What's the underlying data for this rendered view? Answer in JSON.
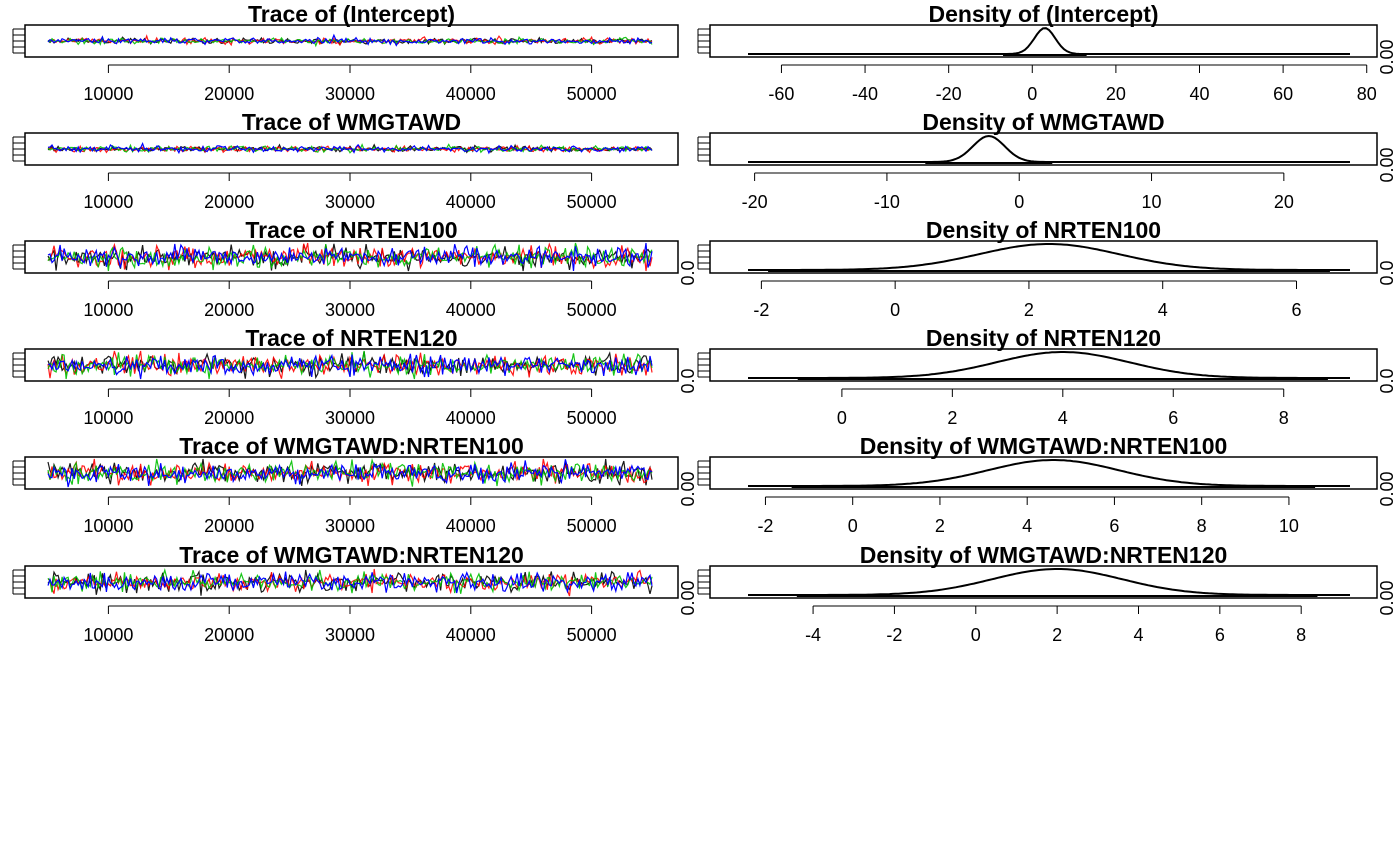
{
  "chart_data": [
    {
      "type": "line",
      "kind": "trace",
      "title": "Trace of (Intercept)",
      "x_ticks": [
        10000,
        20000,
        30000,
        40000,
        50000
      ],
      "xlim": [
        5000,
        55000
      ],
      "y_tick_label": "",
      "colors": [
        "#000000",
        "#ff0000",
        "#00c000",
        "#0000ff"
      ],
      "noise": 0.2
    },
    {
      "type": "line",
      "kind": "density",
      "title": "Density of (Intercept)",
      "x_ticks": [
        -60,
        -40,
        -20,
        0,
        20,
        40,
        60,
        80
      ],
      "xlim": [
        -68,
        76
      ],
      "y_tick_label": "0.00",
      "density": {
        "mean": 3,
        "sd": 2.5
      }
    },
    {
      "type": "line",
      "kind": "trace",
      "title": "Trace of WMGTAWD",
      "x_ticks": [
        10000,
        20000,
        30000,
        40000,
        50000
      ],
      "xlim": [
        5000,
        55000
      ],
      "y_tick_label": "",
      "colors": [
        "#000000",
        "#ff0000",
        "#00c000",
        "#0000ff"
      ],
      "noise": 0.2
    },
    {
      "type": "line",
      "kind": "density",
      "title": "Density of WMGTAWD",
      "x_ticks": [
        -20,
        -10,
        0,
        10,
        20
      ],
      "xlim": [
        -20.5,
        25
      ],
      "y_tick_label": "0.00",
      "density": {
        "mean": -2.3,
        "sd": 1.2
      }
    },
    {
      "type": "line",
      "kind": "trace",
      "title": "Trace of NRTEN100",
      "x_ticks": [
        10000,
        20000,
        30000,
        40000,
        50000
      ],
      "xlim": [
        5000,
        55000
      ],
      "y_tick_label": "0.0",
      "colors": [
        "#000000",
        "#ff0000",
        "#00c000",
        "#0000ff"
      ],
      "noise": 0.7
    },
    {
      "type": "line",
      "kind": "density",
      "title": "Density of NRTEN100",
      "x_ticks": [
        -2,
        0,
        2,
        4,
        6
      ],
      "xlim": [
        -2.2,
        6.8
      ],
      "y_tick_label": "0.0",
      "density": {
        "mean": 2.3,
        "sd": 1.05
      }
    },
    {
      "type": "line",
      "kind": "trace",
      "title": "Trace of NRTEN120",
      "x_ticks": [
        10000,
        20000,
        30000,
        40000,
        50000
      ],
      "xlim": [
        5000,
        55000
      ],
      "y_tick_label": "0.0",
      "colors": [
        "#000000",
        "#ff0000",
        "#00c000",
        "#0000ff"
      ],
      "noise": 0.7
    },
    {
      "type": "line",
      "kind": "density",
      "title": "Density of NRTEN120",
      "x_ticks": [
        0,
        2,
        4,
        6,
        8
      ],
      "xlim": [
        -1.7,
        9.2
      ],
      "y_tick_label": "0.0",
      "density": {
        "mean": 4.0,
        "sd": 1.2
      }
    },
    {
      "type": "line",
      "kind": "trace",
      "title": "Trace of WMGTAWD:NRTEN100",
      "x_ticks": [
        10000,
        20000,
        30000,
        40000,
        50000
      ],
      "xlim": [
        5000,
        55000
      ],
      "y_tick_label": "0.00",
      "colors": [
        "#000000",
        "#ff0000",
        "#00c000",
        "#0000ff"
      ],
      "noise": 0.7
    },
    {
      "type": "line",
      "kind": "density",
      "title": "Density of WMGTAWD:NRTEN100",
      "x_ticks": [
        -2,
        0,
        2,
        4,
        6,
        8,
        10
      ],
      "xlim": [
        -2.4,
        11.4
      ],
      "y_tick_label": "0.00",
      "density": {
        "mean": 4.6,
        "sd": 1.5
      }
    },
    {
      "type": "line",
      "kind": "trace",
      "title": "Trace of WMGTAWD:NRTEN120",
      "x_ticks": [
        10000,
        20000,
        30000,
        40000,
        50000
      ],
      "xlim": [
        5000,
        55000
      ],
      "y_tick_label": "0.00",
      "colors": [
        "#000000",
        "#ff0000",
        "#00c000",
        "#0000ff"
      ],
      "noise": 0.6
    },
    {
      "type": "line",
      "kind": "density",
      "title": "Density of WMGTAWD:NRTEN120",
      "x_ticks": [
        -4,
        -2,
        0,
        2,
        4,
        6,
        8
      ],
      "xlim": [
        -5.6,
        9.2
      ],
      "y_tick_label": "0.00",
      "density": {
        "mean": 2.0,
        "sd": 1.6
      }
    }
  ]
}
